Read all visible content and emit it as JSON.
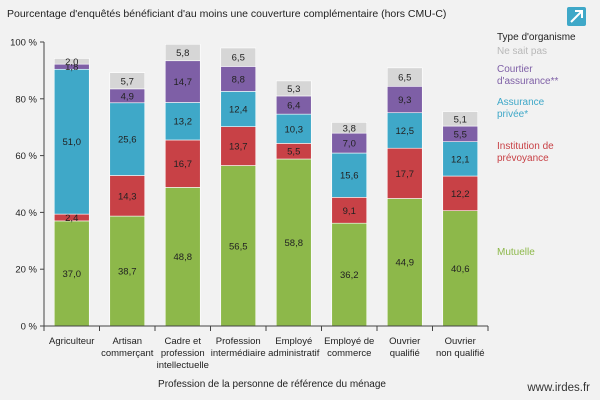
{
  "chart_data": {
    "type": "bar",
    "stacked": true,
    "title": "Pourcentage d'enquêtés bénéficiant d'au moins une couverture complémentaire (hors CMU-C)",
    "xlabel": "Profession de la personne de référence du ménage",
    "ylabel": "",
    "ylim": [
      0,
      100
    ],
    "yticks": [
      "0 %",
      "20 %",
      "40 %",
      "60 %",
      "80 %",
      "100 %"
    ],
    "grid": false,
    "legend_position": "right",
    "legend_title": "Type d'organisme",
    "categories": [
      [
        "Agriculteur"
      ],
      [
        "Artisan",
        "commerçant"
      ],
      [
        "Cadre et",
        "profession",
        "intellectuelle"
      ],
      [
        "Profession",
        "intermédiaire"
      ],
      [
        "Employé",
        "administratif"
      ],
      [
        "Employé de",
        "commerce"
      ],
      [
        "Ouvrier",
        "qualifié"
      ],
      [
        "Ouvrier",
        "non qualifié"
      ]
    ],
    "series": [
      {
        "name": "Mutuelle",
        "color": "#8db84a",
        "values": [
          37.0,
          38.7,
          48.8,
          56.5,
          58.8,
          36.2,
          44.9,
          40.6
        ],
        "labels": [
          "37,0",
          "38,7",
          "48,8",
          "56,5",
          "58,8",
          "36,2",
          "44,9",
          "40,6"
        ]
      },
      {
        "name": "Institution de prévoyance",
        "color": "#c84146",
        "values": [
          2.4,
          14.3,
          16.7,
          13.7,
          5.5,
          9.1,
          17.7,
          12.2
        ],
        "labels": [
          "2,4",
          "14,3",
          "16,7",
          "13,7",
          "5,5",
          "9,1",
          "17,7",
          "12,2"
        ]
      },
      {
        "name": "Assurance privée*",
        "color": "#3fa8c8",
        "values": [
          51.0,
          25.6,
          13.2,
          12.4,
          10.3,
          15.6,
          12.5,
          12.1
        ],
        "labels": [
          "51,0",
          "25,6",
          "13,2",
          "12,4",
          "10,3",
          "15,6",
          "12,5",
          "12,1"
        ]
      },
      {
        "name": "Courtier d'assurance**",
        "color": "#7e5fa6",
        "values": [
          1.8,
          4.9,
          14.7,
          8.8,
          6.4,
          7.0,
          9.3,
          5.5
        ],
        "labels": [
          "1,8",
          "4,9",
          "14,7",
          "8,8",
          "6,4",
          "7,0",
          "9,3",
          "5,5"
        ]
      },
      {
        "name": "Ne sait pas",
        "color": "#d6d6d6",
        "values": [
          2.0,
          5.7,
          5.8,
          6.5,
          5.3,
          3.8,
          6.5,
          5.1
        ],
        "labels": [
          "2,0",
          "5,7",
          "5,8",
          "6,5",
          "5,3",
          "3,8",
          "6,5",
          "5,1"
        ]
      }
    ],
    "legend": [
      {
        "lines": [
          "Ne sait pas"
        ],
        "color": "#b8b8b8"
      },
      {
        "lines": [
          "Courtier",
          "d'assurance**"
        ],
        "color": "#7e5fa6"
      },
      {
        "lines": [
          "Assurance",
          "privée*"
        ],
        "color": "#3fa8c8"
      },
      {
        "lines": [
          "Institution de",
          "prévoyance"
        ],
        "color": "#c84146"
      },
      {
        "lines": [
          "Mutuelle"
        ],
        "color": "#8db84a"
      }
    ]
  },
  "credit": "www.irdes.fr",
  "icon": "expand-arrow-icon",
  "accent_color": "#3fa8c8"
}
